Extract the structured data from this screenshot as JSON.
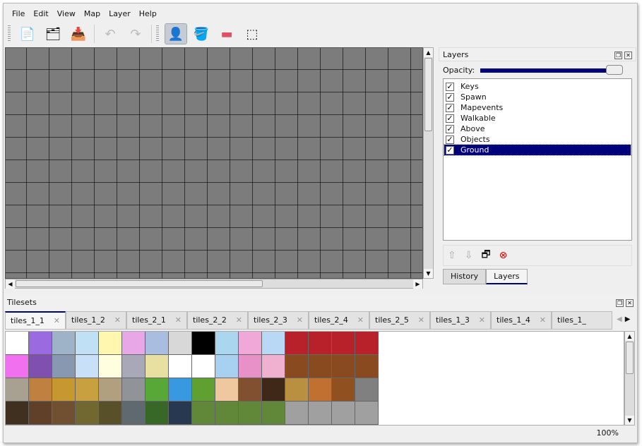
{
  "menu": [
    "File",
    "Edit",
    "View",
    "Map",
    "Layer",
    "Help"
  ],
  "toolbar": {
    "icons": [
      "new-icon",
      "open-icon",
      "save-icon",
      "undo-icon",
      "redo-icon",
      "stamp-brush-icon",
      "bucket-fill-icon",
      "eraser-icon",
      "rect-select-icon"
    ],
    "glyphs": [
      "📄",
      "🗂",
      "📥",
      "↶",
      "↷",
      "👤",
      "🪣",
      "▬",
      "⬚"
    ],
    "active": "stamp-brush-icon"
  },
  "layers_dock": {
    "title": "Layers",
    "opacity_label": "Opacity:",
    "opacity": 1.0,
    "layers": [
      {
        "name": "Keys",
        "visible": true
      },
      {
        "name": "Spawn",
        "visible": true
      },
      {
        "name": "Mapevents",
        "visible": true
      },
      {
        "name": "Walkable",
        "visible": true
      },
      {
        "name": "Above",
        "visible": true
      },
      {
        "name": "Objects",
        "visible": true
      },
      {
        "name": "Ground",
        "visible": true,
        "selected": true
      }
    ],
    "tools": [
      "raise-layer-icon",
      "lower-layer-icon",
      "duplicate-layer-icon",
      "remove-layer-icon"
    ],
    "tabs": [
      "History",
      "Layers"
    ],
    "active_tab": "Layers"
  },
  "tilesets_dock": {
    "title": "Tilesets",
    "tabs": [
      "tiles_1_1",
      "tiles_1_2",
      "tiles_2_1",
      "tiles_2_2",
      "tiles_2_3",
      "tiles_2_4",
      "tiles_2_5",
      "tiles_1_3",
      "tiles_1_4",
      "tiles_1_"
    ],
    "active_tab": "tiles_1_1",
    "tile_colors": [
      [
        "#ffffff",
        "#9a6ae0",
        "#9fb3c8",
        "#bfe0f5",
        "#fff6b0",
        "#e8a8e8",
        "#a8bde0",
        "#d8d8d8",
        "#000000",
        "#aad6f0",
        "#f0a8d8",
        "#b8d8f5",
        "#b8202a",
        "#b8202a",
        "#b8202a",
        "#b8202a"
      ],
      [
        "#f070f0",
        "#8050b0",
        "#8898b0",
        "#c8e0f8",
        "#ffffe0",
        "#a8a8b8",
        "#e8e0a0",
        "#ffffff",
        "#ffffff",
        "#a8d0f0",
        "#e890c8",
        "#f0b0d0",
        "#8a4a20",
        "#8a4a20",
        "#8a4a20",
        "#8a4a20"
      ],
      [
        "#a8a090",
        "#c08040",
        "#c89830",
        "#c8a040",
        "#b0a080",
        "#909498",
        "#58a838",
        "#3898e0",
        "#60a030",
        "#f0c8a0",
        "#805030",
        "#402818",
        "#b89040",
        "#c07030",
        "#905020",
        "#808080"
      ],
      [
        "#403020",
        "#604028",
        "#705030",
        "#706830",
        "#585028",
        "#606870",
        "#386828",
        "#283850",
        "#608838",
        "#608838",
        "#608838",
        "#608838",
        "#a0a0a0",
        "#a0a0a0",
        "#a0a0a0",
        "#a0a0a0"
      ]
    ]
  },
  "status": {
    "zoom": "100%"
  }
}
